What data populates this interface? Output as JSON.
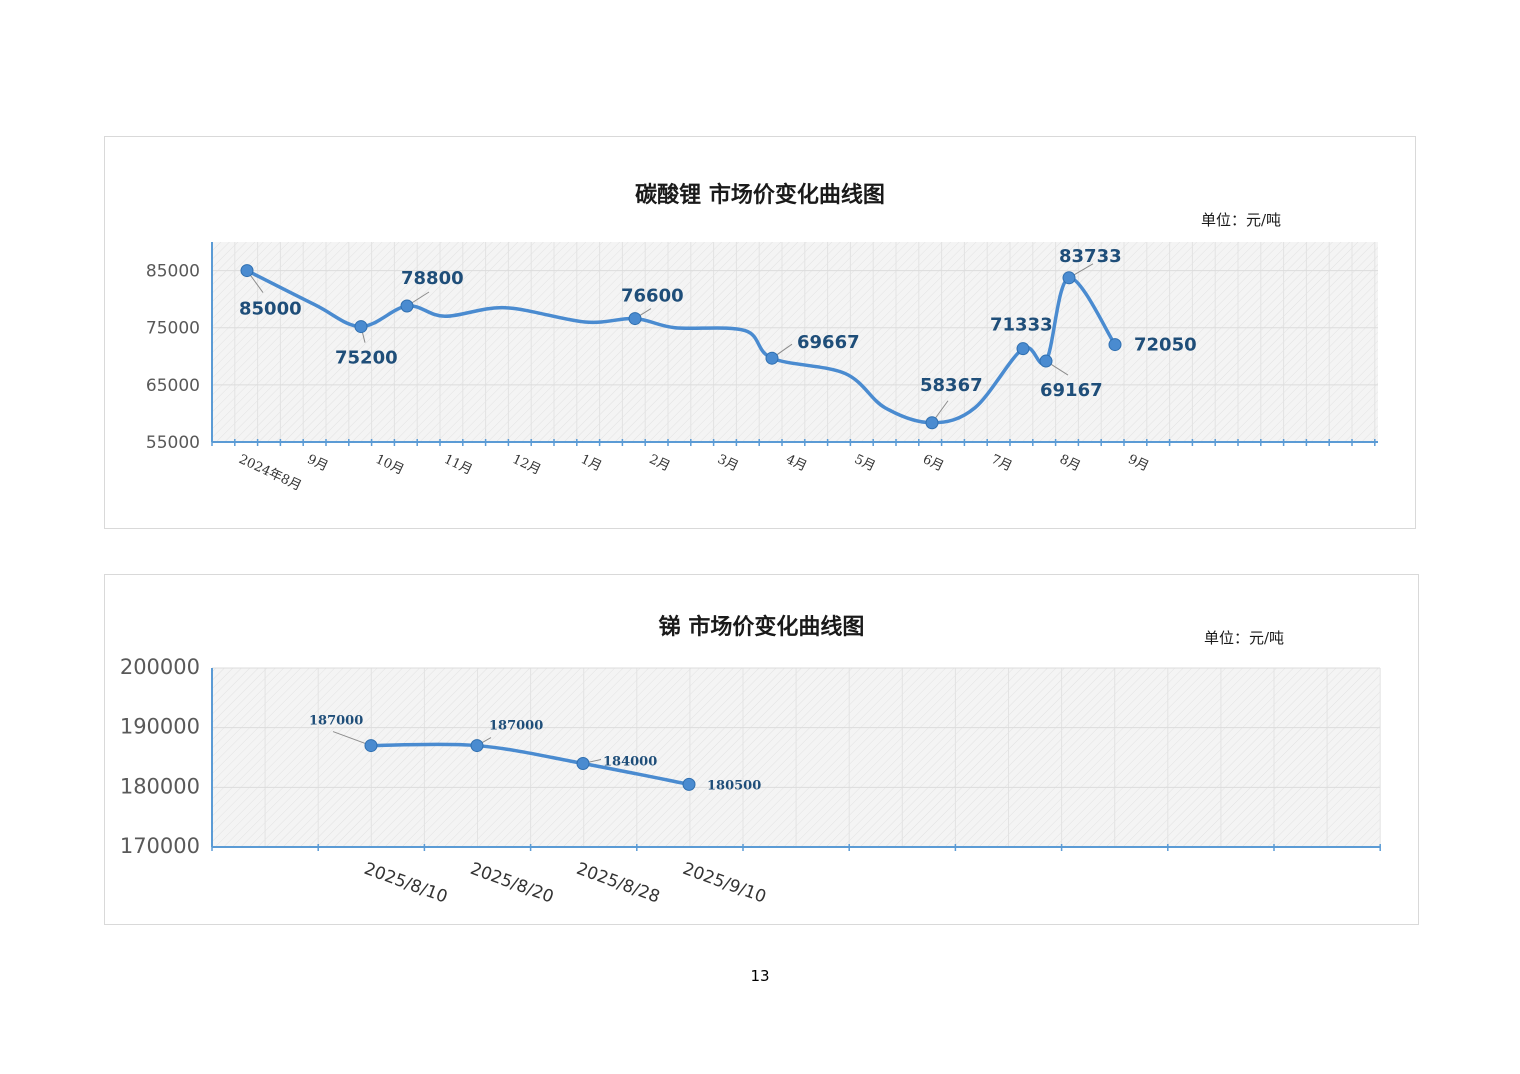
{
  "page": {
    "number": "13"
  },
  "chart_data": [
    {
      "type": "line",
      "title": "碳酸锂 市场价变化曲线图",
      "unit": "单位：元/吨",
      "x": [
        "2024/8",
        "2024/10/初",
        "2024/10/中",
        "2025/2/初",
        "2025/4/初",
        "2025/6/中",
        "2025/7/末",
        "2025/8/初",
        "2025/8/中",
        "2025/9/初"
      ],
      "tick_labels": [
        "2024年8月",
        "9月",
        "10月",
        "11月",
        "12月",
        "1月",
        "2月",
        "3月",
        "4月",
        "5月",
        "6月",
        "7月",
        "8月",
        "9月"
      ],
      "series": [
        {
          "values": [
            85000,
            75200,
            78800,
            76600,
            69667,
            58367,
            71333,
            69167,
            83733,
            72050
          ]
        }
      ],
      "data_labels": [
        "85000",
        "75200",
        "78800",
        "76600",
        "69667",
        "58367",
        "71333",
        "69167",
        "83733",
        "72050"
      ],
      "yticks": [
        "55000",
        "65000",
        "75000",
        "85000"
      ],
      "ylim": [
        55000,
        90000
      ],
      "grid": true,
      "color": "#4a8bd0",
      "label_color": "#1f4e79"
    },
    {
      "type": "line",
      "title": "锑  市场价变化曲线图",
      "unit": "单位：元/吨",
      "x": [
        "2025/8/10",
        "2025/8/20",
        "2025/8/28",
        "2025/9/10"
      ],
      "tick_labels": [
        "2025/8/10",
        "2025/8/20",
        "2025/8/28",
        "2025/9/10"
      ],
      "series": [
        {
          "values": [
            187000,
            187000,
            184000,
            180500
          ]
        }
      ],
      "data_labels": [
        "187000",
        "187000",
        "184000",
        "180500"
      ],
      "yticks": [
        "170000",
        "180000",
        "190000",
        "200000"
      ],
      "ylim": [
        170000,
        200000
      ],
      "grid": true,
      "color": "#4a8bd0",
      "label_color": "#1f4e79"
    }
  ]
}
